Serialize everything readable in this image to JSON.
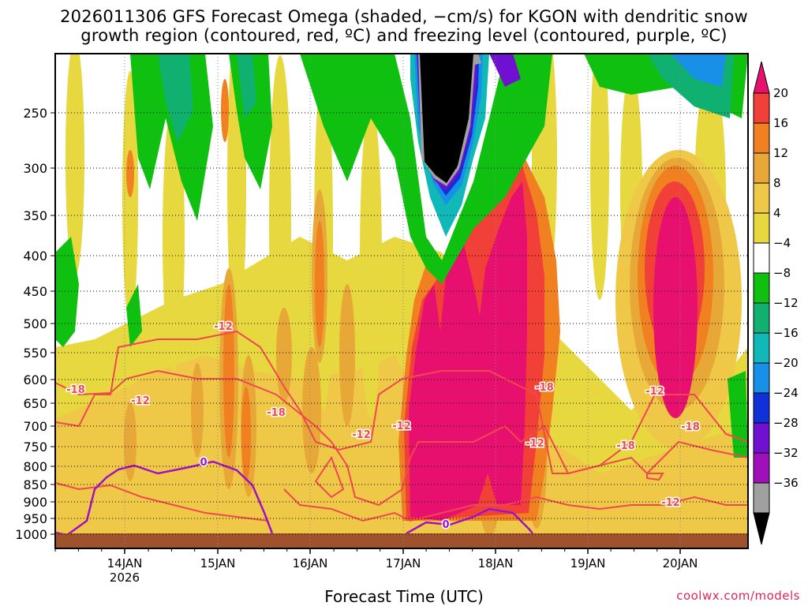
{
  "chart_data": {
    "type": "heatmap",
    "title": "2026011306 GFS Forecast Omega (shaded, −cm/s) for KGON with dendritic snow",
    "subtitle": "growth region (contoured, red, ºC) and freezing level (contoured, purple, ºC)",
    "xlabel": "Forecast Time (UTC)",
    "ylabel": "",
    "x_ticks": [
      "14JAN",
      "15JAN",
      "16JAN",
      "17JAN",
      "18JAN",
      "19JAN",
      "20JAN"
    ],
    "x_year_label": "2026",
    "y_ticks": [
      250,
      300,
      350,
      400,
      450,
      500,
      550,
      600,
      650,
      700,
      750,
      800,
      850,
      900,
      950,
      1000
    ],
    "y_range": [
      1000,
      200
    ],
    "colorbar": {
      "labels": [
        "20",
        "16",
        "12",
        "8",
        "4",
        "−4",
        "−8",
        "−12",
        "−16",
        "−20",
        "−24",
        "−28",
        "−32",
        "−36"
      ],
      "colors": [
        "#e8106e",
        "#f04038",
        "#f08020",
        "#e8a838",
        "#f0c848",
        "#e8d840",
        "#ffffff",
        "#10c010",
        "#10b070",
        "#10b8b8",
        "#1890e8",
        "#1030d8",
        "#7010d0",
        "#a010b8",
        "#a0a0a0",
        "#000000"
      ]
    },
    "omega_features": [
      {
        "label": "strong upward motion",
        "time": "17JAN–18JAN",
        "value": 20
      },
      {
        "label": "strong upward motion",
        "time": "20JAN",
        "value": 20
      },
      {
        "label": "strong downward motion",
        "time": "17JAN",
        "value": -36
      }
    ],
    "contour_labels": {
      "dendritic": [
        "-18",
        "-12",
        "-12",
        "-18",
        "-12",
        "-12",
        "-18",
        "-12",
        "-18",
        "-12",
        "-18",
        "-12"
      ],
      "freezing": [
        "0",
        "0"
      ]
    }
  },
  "footer": {
    "credit": "coolwx.com/models"
  },
  "colors": {
    "dendritic_contour": "#f04850",
    "freezing_contour": "#a010c8",
    "ground": "#a0522d",
    "credit": "#e0245e"
  }
}
